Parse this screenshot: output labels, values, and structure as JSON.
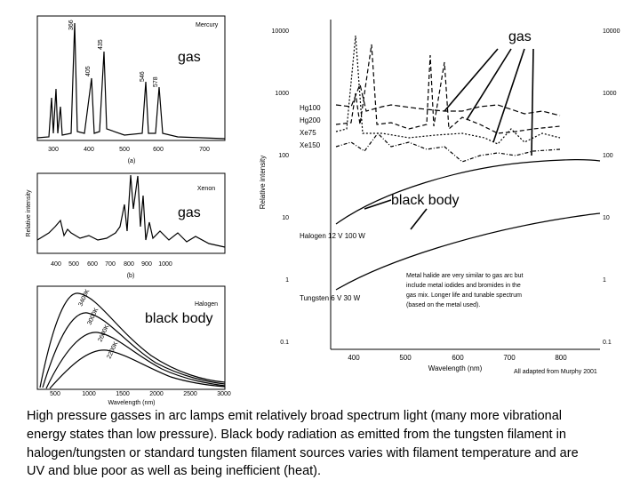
{
  "panels": [
    {
      "title": "Mercury",
      "peaks": [
        "366",
        "405",
        "435",
        "546",
        "578"
      ],
      "xticks": [
        "300",
        "400",
        "500",
        "600",
        "700"
      ],
      "subcaption": "(a)",
      "annotation": "gas"
    },
    {
      "title": "Xenon",
      "ylabel": "Relative intensity",
      "xticks": [
        "400",
        "500",
        "600",
        "700",
        "800",
        "900",
        "1000"
      ],
      "subcaption": "(b)",
      "annotation": "gas"
    },
    {
      "title": "Halogen",
      "curves": [
        "3400K",
        "3000K",
        "2600K",
        "2200K"
      ],
      "xticks": [
        "500",
        "1000",
        "1500",
        "2000",
        "2500",
        "3000"
      ],
      "xlabel": "Wavelength (nm)",
      "annotation": "black body"
    }
  ],
  "main": {
    "yticks": [
      "10000",
      "1000",
      "100",
      "10",
      "1",
      "0.1"
    ],
    "ylabel": "Relative intensity",
    "legend": [
      "Hg100",
      "Hg200",
      "Xe75",
      "Xe150"
    ],
    "halogen": "Halogen 12 V 100 W",
    "tungsten": "Tungsten 6 V 30 W",
    "xticks": [
      "400",
      "500",
      "600",
      "700",
      "800"
    ],
    "xlabel": "Wavelength (nm)",
    "gas": "gas",
    "blackbody": "black body",
    "note": [
      "Metal halide are very similar to gas arc but",
      "include metal iodides and bromides in the",
      "gas mix.  Longer life and tunable spectrum",
      "(based on the metal used)."
    ],
    "credit": "All adapted from Murphy 2001"
  },
  "caption": [
    "High pressure gasses in arc lamps emit relatively broad spectrum light (many more vibrational",
    "energy states than low pressure).  Black body radiation as emitted from the tungsten filament in",
    "halogen/tungsten or standard tungsten filament sources varies with filament temperature and are",
    "UV and blue poor as well as being inefficient (heat)."
  ]
}
